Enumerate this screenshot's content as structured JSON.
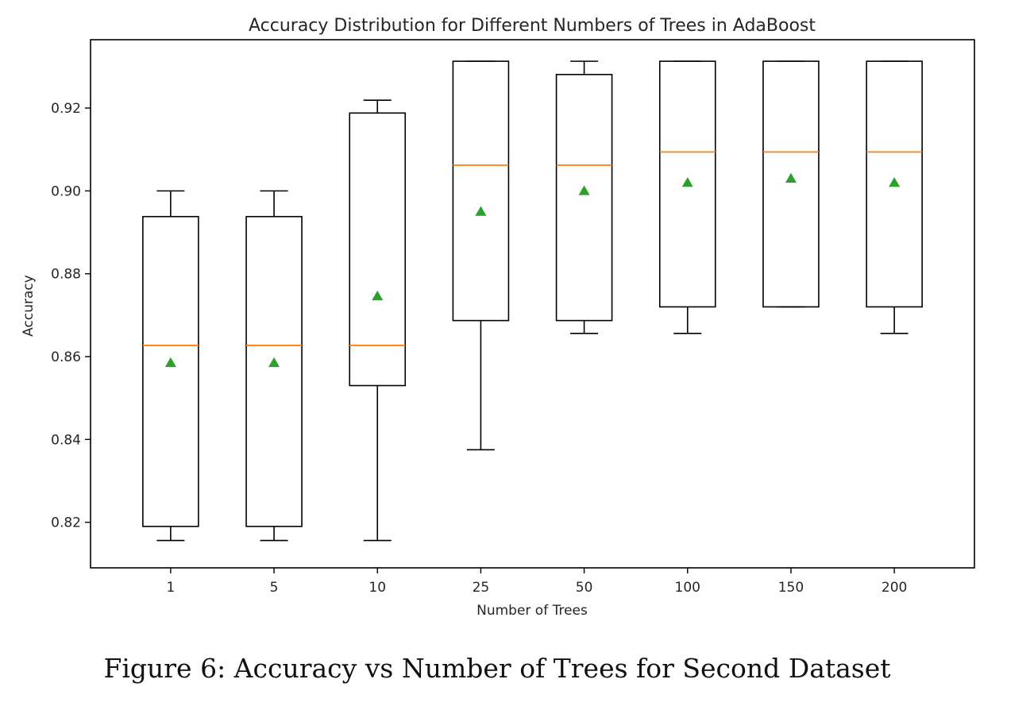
{
  "chart_data": {
    "type": "box",
    "title": "Accuracy Distribution for Different Numbers of Trees in AdaBoost",
    "xlabel": "Number of Trees",
    "ylabel": "Accuracy",
    "ylim": [
      0.809,
      0.9365
    ],
    "yticks": [
      0.82,
      0.84,
      0.86,
      0.88,
      0.9,
      0.92
    ],
    "ytick_labels": [
      "0.82",
      "0.84",
      "0.86",
      "0.88",
      "0.90",
      "0.92"
    ],
    "grid": false,
    "legend": "none",
    "colors": {
      "box": "#000000",
      "median": "#ff7f0e",
      "mean": "#2ca02c"
    },
    "categories": [
      "1",
      "5",
      "10",
      "25",
      "50",
      "100",
      "150",
      "200"
    ],
    "boxes": [
      {
        "whislo": 0.8156,
        "q1": 0.819,
        "med": 0.8627,
        "q3": 0.8938,
        "whishi": 0.9,
        "mean": 0.8585
      },
      {
        "whislo": 0.8156,
        "q1": 0.819,
        "med": 0.8627,
        "q3": 0.8938,
        "whishi": 0.9,
        "mean": 0.8585
      },
      {
        "whislo": 0.8156,
        "q1": 0.853,
        "med": 0.8627,
        "q3": 0.9188,
        "whishi": 0.9219,
        "mean": 0.8746
      },
      {
        "whislo": 0.8375,
        "q1": 0.8687,
        "med": 0.9062,
        "q3": 0.9313,
        "whishi": 0.9313,
        "mean": 0.895
      },
      {
        "whislo": 0.8656,
        "q1": 0.8687,
        "med": 0.9062,
        "q3": 0.9281,
        "whishi": 0.9313,
        "mean": 0.9
      },
      {
        "whislo": 0.8656,
        "q1": 0.872,
        "med": 0.9094,
        "q3": 0.9313,
        "whishi": 0.9313,
        "mean": 0.902
      },
      {
        "whislo": 0.872,
        "q1": 0.872,
        "med": 0.9094,
        "q3": 0.9313,
        "whishi": 0.9313,
        "mean": 0.903
      },
      {
        "whislo": 0.8656,
        "q1": 0.872,
        "med": 0.9094,
        "q3": 0.9313,
        "whishi": 0.9313,
        "mean": 0.902
      }
    ]
  },
  "caption": "Figure 6: Accuracy vs Number of Trees for Second Dataset"
}
